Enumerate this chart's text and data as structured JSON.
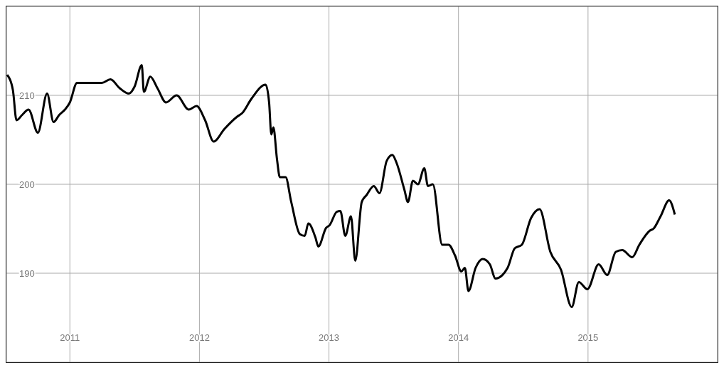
{
  "chart_data": {
    "type": "line",
    "x": [
      2010.516,
      2010.56,
      2010.588,
      2010.632,
      2010.681,
      2010.753,
      2010.824,
      2010.874,
      2010.918,
      2010.962,
      2011.0,
      2011.055,
      2011.11,
      2011.247,
      2011.313,
      2011.385,
      2011.456,
      2011.5,
      2011.555,
      2011.571,
      2011.621,
      2011.676,
      2011.742,
      2011.824,
      2011.918,
      2011.978,
      2012.044,
      2012.11,
      2012.192,
      2012.291,
      2012.33,
      2012.401,
      2012.511,
      2012.538,
      2012.555,
      2012.571,
      2012.599,
      2012.621,
      2012.665,
      2012.709,
      2012.775,
      2012.813,
      2012.841,
      2012.896,
      2012.918,
      2012.978,
      2013.005,
      2013.06,
      2013.088,
      2013.126,
      2013.17,
      2013.203,
      2013.253,
      2013.291,
      2013.346,
      2013.39,
      2013.445,
      2013.489,
      2013.522,
      2013.582,
      2013.61,
      2013.648,
      2013.687,
      2013.736,
      2013.764,
      2013.802,
      2013.874,
      2013.923,
      2013.973,
      2014.022,
      2014.049,
      2014.077,
      2014.132,
      2014.187,
      2014.242,
      2014.286,
      2014.379,
      2014.434,
      2014.489,
      2014.56,
      2014.626,
      2014.709,
      2014.791,
      2014.874,
      2014.929,
      2014.995,
      2015.082,
      2015.148,
      2015.214,
      2015.264,
      2015.341,
      2015.396,
      2015.478,
      2015.505,
      2015.56,
      2015.626,
      2015.67
    ],
    "series": [
      {
        "color": "#000000",
        "values": [
          212.3,
          210.6,
          207.2,
          207.8,
          208.4,
          205.8,
          210.2,
          207.0,
          207.8,
          208.4,
          209.2,
          211.4,
          211.4,
          211.4,
          211.8,
          210.8,
          210.2,
          211.0,
          213.4,
          210.4,
          212.1,
          210.8,
          209.2,
          210.0,
          208.4,
          208.8,
          207.2,
          204.8,
          206.2,
          207.6,
          208.0,
          209.6,
          211.2,
          209.2,
          205.6,
          206.4,
          202.8,
          200.8,
          200.8,
          198.0,
          194.4,
          194.2,
          195.6,
          194.0,
          193.0,
          195.1,
          195.4,
          196.9,
          197.0,
          194.2,
          196.4,
          191.4,
          198.0,
          198.8,
          199.8,
          199.0,
          202.6,
          203.3,
          202.4,
          199.4,
          198.0,
          200.4,
          200.0,
          201.8,
          199.8,
          200.0,
          193.2,
          193.2,
          192.0,
          190.2,
          190.6,
          188.0,
          190.6,
          191.6,
          191.0,
          189.4,
          190.6,
          192.8,
          193.2,
          196.2,
          197.2,
          192.4,
          190.4,
          186.2,
          189.0,
          188.2,
          191.0,
          189.8,
          192.4,
          192.6,
          191.8,
          193.2,
          194.8,
          195.0,
          196.4,
          198.2,
          196.6
        ]
      }
    ],
    "xlim": [
      2010.51,
      2016.0
    ],
    "xticks": [
      2011,
      2012,
      2013,
      2014,
      2015
    ],
    "ylim": [
      180,
      220
    ],
    "yticks": [
      190,
      200,
      210
    ],
    "grid": true,
    "marker": "none",
    "line_style": "solid"
  }
}
